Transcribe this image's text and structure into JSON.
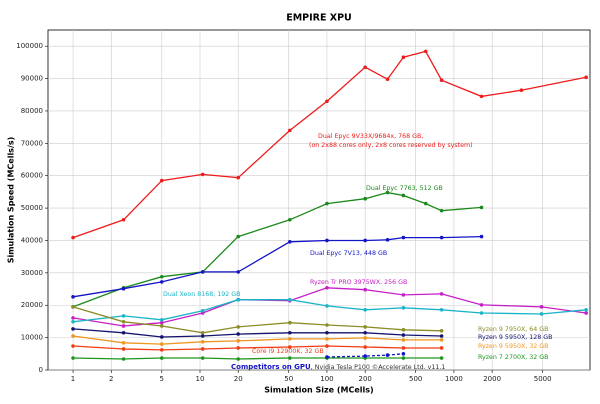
{
  "chart_data": {
    "type": "line",
    "title": "EMPIRE XPU",
    "x_label": "Simulation Size (MCells)",
    "y_label": "Simulation Speed (MCells/s)",
    "xscale": "log",
    "grid": true,
    "xlim": [
      0.635,
      11800
    ],
    "xticks": [
      1,
      2,
      5,
      10,
      20,
      50,
      100,
      200,
      500,
      1000,
      2000,
      5000
    ],
    "ylim": [
      0,
      105000
    ],
    "yticks": [
      0,
      10000,
      20000,
      30000,
      40000,
      50000,
      60000,
      70000,
      80000,
      90000,
      100000
    ],
    "series": [
      {
        "name": "Dual Epyc 9V33X/9684x, 768 GB,",
        "note": "(on 2x88 cores only, 2x8 cores reserved by system)",
        "color": "#ee1c1c",
        "x": [
          1,
          2.5,
          5,
          10.5,
          20,
          51,
          100,
          200,
          300,
          400,
          600,
          800,
          1650,
          3400,
          11000
        ],
        "values": [
          40900,
          46400,
          58500,
          60400,
          59400,
          74000,
          83000,
          93500,
          89800,
          96600,
          98400,
          89500,
          84500,
          86400,
          90400
        ]
      },
      {
        "name": "Dual Epyc 7763, 512 GB",
        "color": "#1a8a1a",
        "x": [
          1,
          2.5,
          5,
          10.5,
          20,
          51,
          100,
          200,
          300,
          400,
          600,
          800,
          1650
        ],
        "values": [
          19500,
          25400,
          28800,
          30300,
          41200,
          46400,
          51400,
          52900,
          54800,
          53900,
          51400,
          49200,
          50200
        ]
      },
      {
        "name": "Dual Epyc 7V13, 448 GB",
        "color": "#1414c8",
        "x": [
          1,
          2.5,
          5,
          10.5,
          20,
          51,
          100,
          200,
          300,
          400,
          800,
          1650
        ],
        "values": [
          22600,
          25100,
          27200,
          30300,
          30300,
          39600,
          40000,
          40000,
          40200,
          40900,
          40900,
          41200
        ]
      },
      {
        "name": "Ryzen Tr PRO 3975WX, 256 GB",
        "color": "#c81ec8",
        "x": [
          1,
          2.5,
          5,
          10.5,
          20,
          51,
          100,
          200,
          400,
          800,
          1650,
          4900,
          11000
        ],
        "values": [
          16100,
          13600,
          14600,
          17600,
          21700,
          21400,
          25400,
          24800,
          23200,
          23500,
          20100,
          19500,
          17600
        ]
      },
      {
        "name": "Dual Xeon 8168, 192 GB",
        "color": "#1ab4c8",
        "x": [
          1,
          2.5,
          5,
          10.5,
          20,
          51,
          100,
          200,
          400,
          800,
          1650,
          4900,
          11000
        ],
        "values": [
          14900,
          16700,
          15500,
          18300,
          21700,
          21700,
          19800,
          18600,
          19200,
          18600,
          17600,
          17300,
          18600
        ]
      },
      {
        "name": "Ryzen 9 7950X, 64 GB",
        "color": "#8c8c28",
        "x": [
          1,
          2.5,
          5,
          10.5,
          20,
          51,
          100,
          200,
          400,
          800
        ],
        "values": [
          19500,
          14900,
          13600,
          11500,
          13300,
          14600,
          13900,
          13300,
          12400,
          12100
        ]
      },
      {
        "name": "Ryzen 9 5950X, 128 GB",
        "color": "#14146e",
        "x": [
          1,
          2.5,
          5,
          10.5,
          20,
          51,
          100,
          200,
          400,
          800
        ],
        "values": [
          12700,
          11500,
          10200,
          10500,
          11100,
          11500,
          11500,
          11500,
          10800,
          10500
        ]
      },
      {
        "name": "Ryzen 9 5950X, 32 GB",
        "color": "#f0961e",
        "x": [
          1,
          2.5,
          5,
          10.5,
          20,
          51,
          100,
          200,
          400,
          800
        ],
        "values": [
          10500,
          8400,
          8000,
          8700,
          9000,
          9600,
          9600,
          9900,
          9300,
          9300
        ]
      },
      {
        "name": "Core i9 12900K, 32 GB",
        "color": "#f03c14",
        "x": [
          1,
          2.5,
          5,
          10.5,
          20,
          51,
          100,
          200,
          400,
          800
        ],
        "values": [
          7400,
          6500,
          6200,
          6500,
          6800,
          7100,
          7400,
          7100,
          6800,
          6800
        ]
      },
      {
        "name": "Ryzen 7 2700X, 32 GB",
        "color": "#1e961e",
        "x": [
          1,
          2.5,
          5,
          10.5,
          20,
          51,
          100,
          200,
          400,
          800
        ],
        "values": [
          3700,
          3400,
          3700,
          3700,
          3400,
          3700,
          3700,
          3700,
          3700,
          3700
        ]
      },
      {
        "name": "Competitors on GPU",
        "credit": ", Nvidia Tesla P100 ©Accelerate Ltd. v11.1",
        "color": "#1414c8",
        "dashed": true,
        "x": [
          100,
          200,
          300,
          400
        ],
        "values": [
          4000,
          4300,
          4600,
          5000
        ]
      }
    ]
  }
}
